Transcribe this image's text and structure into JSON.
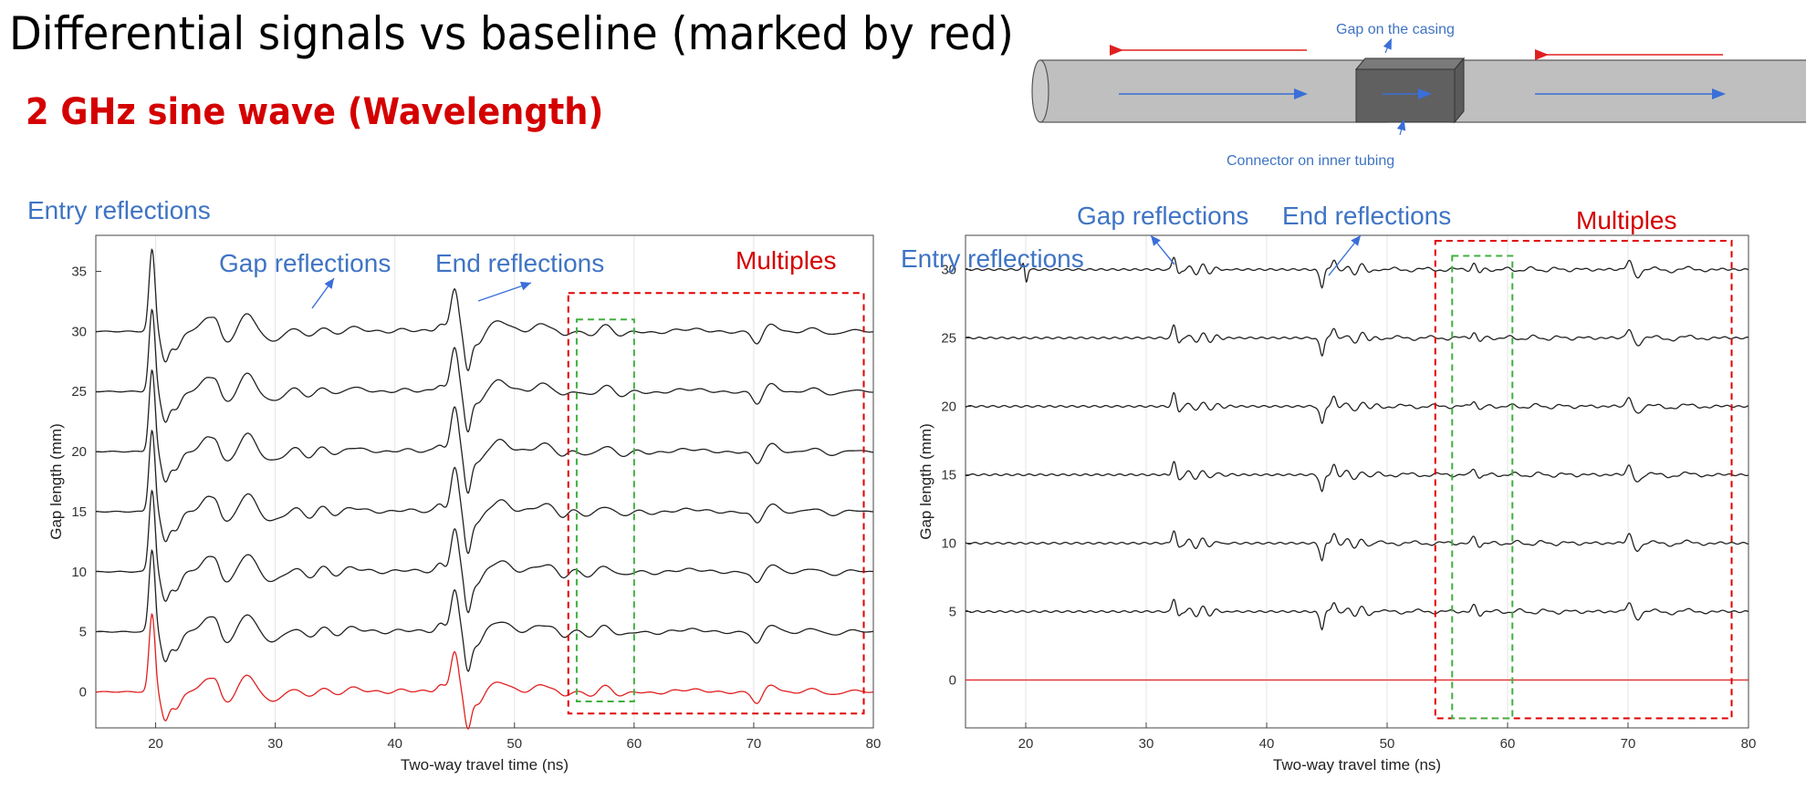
{
  "header": {
    "title": "Differential signals vs baseline (marked by red)",
    "subtitle": "2 GHz sine wave (Wavelength)"
  },
  "schematic": {
    "gap_label": "Gap on the casing",
    "connector_label": "Connector on inner tubing"
  },
  "colors": {
    "blue_label": "#3f74c4",
    "red_label": "#d40000",
    "trace": "#222222",
    "baseline_trace": "#e02020",
    "green_box": "#40b040",
    "red_box": "#e00000"
  },
  "chart_data": [
    {
      "type": "line",
      "title": "",
      "xlabel": "Two-way travel time (ns)",
      "ylabel": "Gap length (mm)",
      "xlim": [
        15,
        80
      ],
      "ylim": [
        -3,
        38
      ],
      "xticks": [
        20,
        30,
        40,
        50,
        60,
        70,
        80
      ],
      "yticks": [
        0,
        5,
        10,
        15,
        20,
        25,
        30,
        35
      ],
      "grid": "vertical",
      "series_offsets": [
        0,
        5,
        10,
        15,
        20,
        25,
        30
      ],
      "baseline_series": 0,
      "annotations": {
        "entry": "Entry reflections",
        "gap": "Gap reflections",
        "end": "End reflections",
        "multiples": "Multiples"
      },
      "multiples_box": {
        "x": [
          54.5,
          79.2
        ],
        "y": [
          -1.8,
          33.2
        ]
      },
      "window_box": {
        "x": [
          55.2,
          60.0
        ],
        "y": [
          -0.8,
          31.0
        ]
      }
    },
    {
      "type": "line",
      "title": "",
      "xlabel": "Two-way travel time (ns)",
      "ylabel": "Gap length (mm)",
      "xlim": [
        15,
        80
      ],
      "ylim": [
        -3.5,
        32.5
      ],
      "xticks": [
        20,
        30,
        40,
        50,
        60,
        70,
        80
      ],
      "yticks": [
        0,
        5,
        10,
        15,
        20,
        25,
        30
      ],
      "grid": "vertical",
      "series_offsets": [
        0,
        5,
        10,
        15,
        20,
        25,
        30
      ],
      "baseline_series": 0,
      "annotations": {
        "entry": "Entry reflections",
        "gap": "Gap reflections",
        "end": "End reflections",
        "multiples": "Multiples"
      },
      "multiples_box": {
        "x": [
          54.0,
          78.6
        ],
        "y": [
          -2.8,
          32.1
        ]
      },
      "window_box": {
        "x": [
          55.4,
          60.4
        ],
        "y": [
          -2.8,
          31.0
        ]
      }
    }
  ]
}
